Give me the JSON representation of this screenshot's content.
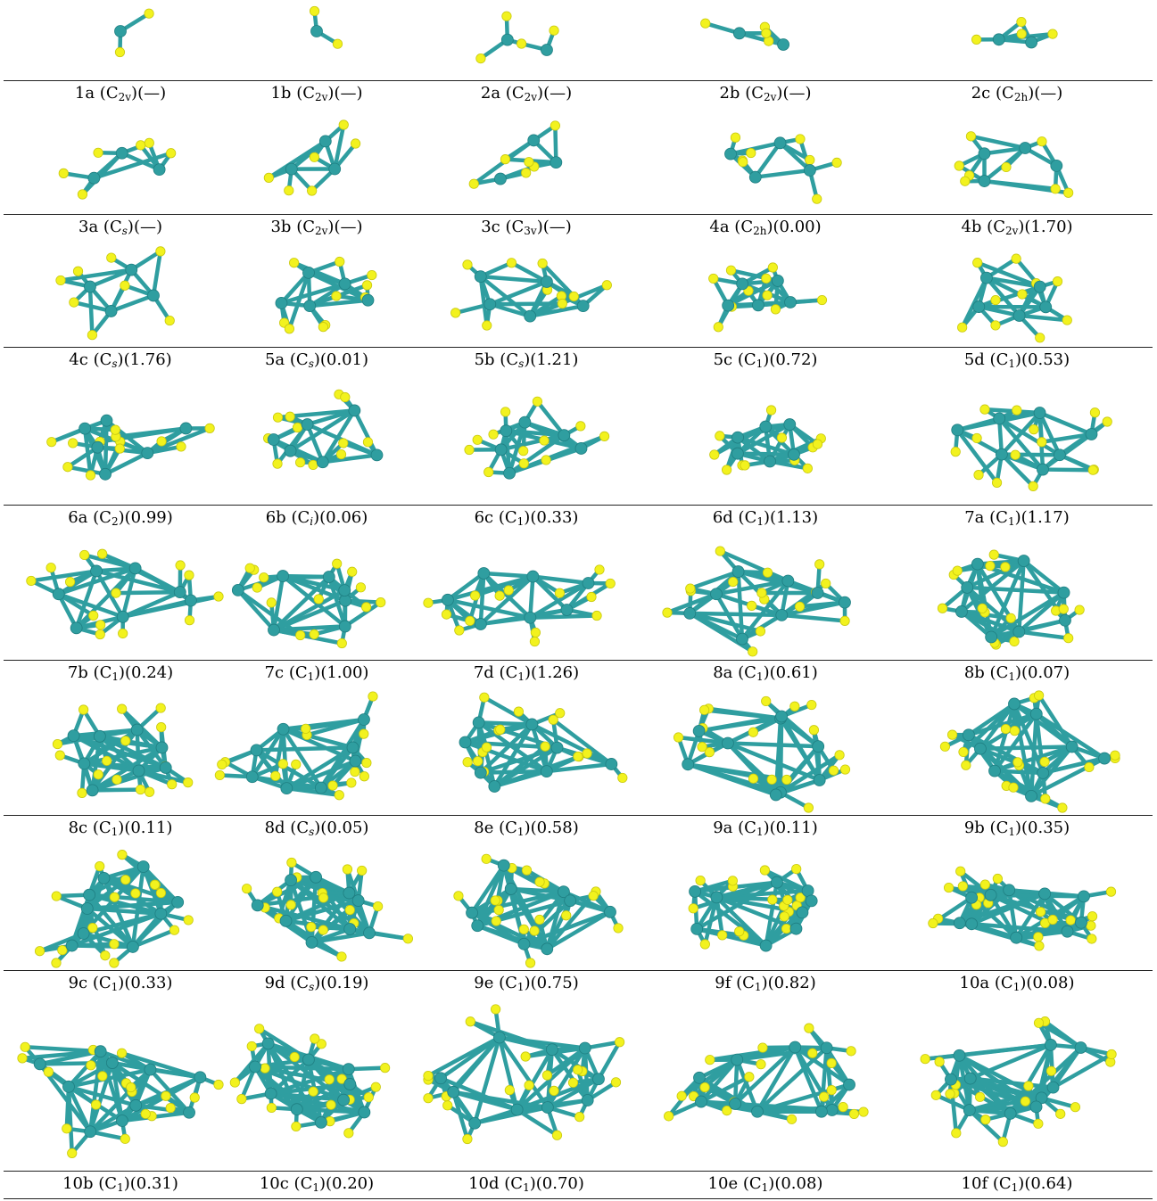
{
  "colors": {
    "metal": "#2f9ea0",
    "sulfur": "#f2f21e",
    "rule": "#222222"
  },
  "rows": [
    {
      "cells": [
        {
          "id": "1a",
          "group": "C",
          "sub": "2v",
          "energy": "(—)",
          "atoms": {
            "m": 1,
            "s": 2
          }
        },
        {
          "id": "1b",
          "group": "C",
          "sub": "2v",
          "energy": "(—)",
          "atoms": {
            "m": 1,
            "s": 2
          }
        },
        {
          "id": "2a",
          "group": "C",
          "sub": "2v",
          "energy": "(—)",
          "atoms": {
            "m": 2,
            "s": 4
          }
        },
        {
          "id": "2b",
          "group": "C",
          "sub": "2v",
          "energy": "(—)",
          "atoms": {
            "m": 2,
            "s": 4
          }
        },
        {
          "id": "2c",
          "group": "C",
          "sub": "2h",
          "energy": "(—)",
          "atoms": {
            "m": 2,
            "s": 4
          }
        }
      ]
    },
    {
      "cells": [
        {
          "id": "3a",
          "group": "C",
          "sub": "s",
          "energy": "(—)",
          "atoms": {
            "m": 3,
            "s": 6
          }
        },
        {
          "id": "3b",
          "group": "C",
          "sub": "2v",
          "energy": "(—)",
          "atoms": {
            "m": 3,
            "s": 6
          }
        },
        {
          "id": "3c",
          "group": "C",
          "sub": "3v",
          "energy": "(—)",
          "atoms": {
            "m": 3,
            "s": 6
          }
        },
        {
          "id": "4a",
          "group": "C",
          "sub": "2h",
          "energy": "(0.00)",
          "atoms": {
            "m": 4,
            "s": 8
          }
        },
        {
          "id": "4b",
          "group": "C",
          "sub": "2v",
          "energy": "(1.70)",
          "atoms": {
            "m": 4,
            "s": 8
          }
        }
      ]
    },
    {
      "cells": [
        {
          "id": "4c",
          "group": "C",
          "sub": "s",
          "energy": "(1.76)",
          "atoms": {
            "m": 4,
            "s": 8
          }
        },
        {
          "id": "5a",
          "group": "C",
          "sub": "s",
          "energy": "(0.01)",
          "atoms": {
            "m": 5,
            "s": 10
          }
        },
        {
          "id": "5b",
          "group": "C",
          "sub": "s",
          "energy": "(1.21)",
          "atoms": {
            "m": 5,
            "s": 10
          }
        },
        {
          "id": "5c",
          "group": "C",
          "sub": "1",
          "energy": "(0.72)",
          "atoms": {
            "m": 5,
            "s": 10
          }
        },
        {
          "id": "5d",
          "group": "C",
          "sub": "1",
          "energy": "(0.53)",
          "atoms": {
            "m": 5,
            "s": 10
          }
        }
      ]
    },
    {
      "cells": [
        {
          "id": "6a",
          "group": "C",
          "sub": "2",
          "energy": "(0.99)",
          "atoms": {
            "m": 6,
            "s": 12
          }
        },
        {
          "id": "6b",
          "group": "C",
          "sub": "i",
          "energy": "(0.06)",
          "atoms": {
            "m": 6,
            "s": 12
          }
        },
        {
          "id": "6c",
          "group": "C",
          "sub": "1",
          "energy": "(0.33)",
          "atoms": {
            "m": 6,
            "s": 12
          }
        },
        {
          "id": "6d",
          "group": "C",
          "sub": "1",
          "energy": "(1.13)",
          "atoms": {
            "m": 6,
            "s": 12
          }
        },
        {
          "id": "7a",
          "group": "C",
          "sub": "1",
          "energy": "(1.17)",
          "atoms": {
            "m": 7,
            "s": 14
          }
        }
      ]
    },
    {
      "cells": [
        {
          "id": "7b",
          "group": "C",
          "sub": "1",
          "energy": "(0.24)",
          "atoms": {
            "m": 7,
            "s": 14
          }
        },
        {
          "id": "7c",
          "group": "C",
          "sub": "1",
          "energy": "(1.00)",
          "atoms": {
            "m": 7,
            "s": 14
          }
        },
        {
          "id": "7d",
          "group": "C",
          "sub": "1",
          "energy": "(1.26)",
          "atoms": {
            "m": 7,
            "s": 14
          }
        },
        {
          "id": "8a",
          "group": "C",
          "sub": "1",
          "energy": "(0.61)",
          "atoms": {
            "m": 8,
            "s": 16
          }
        },
        {
          "id": "8b",
          "group": "C",
          "sub": "1",
          "energy": "(0.07)",
          "atoms": {
            "m": 8,
            "s": 16
          }
        }
      ]
    },
    {
      "cells": [
        {
          "id": "8c",
          "group": "C",
          "sub": "1",
          "energy": "(0.11)",
          "atoms": {
            "m": 8,
            "s": 16
          }
        },
        {
          "id": "8d",
          "group": "C",
          "sub": "s",
          "energy": "(0.05)",
          "atoms": {
            "m": 8,
            "s": 16
          }
        },
        {
          "id": "8e",
          "group": "C",
          "sub": "1",
          "energy": "(0.58)",
          "atoms": {
            "m": 8,
            "s": 16
          }
        },
        {
          "id": "9a",
          "group": "C",
          "sub": "1",
          "energy": "(0.11)",
          "atoms": {
            "m": 9,
            "s": 18
          }
        },
        {
          "id": "9b",
          "group": "C",
          "sub": "1",
          "energy": "(0.35)",
          "atoms": {
            "m": 9,
            "s": 18
          }
        }
      ]
    },
    {
      "cells": [
        {
          "id": "9c",
          "group": "C",
          "sub": "1",
          "energy": "(0.33)",
          "atoms": {
            "m": 9,
            "s": 18
          }
        },
        {
          "id": "9d",
          "group": "C",
          "sub": "s",
          "energy": "(0.19)",
          "atoms": {
            "m": 9,
            "s": 18
          }
        },
        {
          "id": "9e",
          "group": "C",
          "sub": "1",
          "energy": "(0.75)",
          "atoms": {
            "m": 9,
            "s": 18
          }
        },
        {
          "id": "9f",
          "group": "C",
          "sub": "1",
          "energy": "(0.82)",
          "atoms": {
            "m": 9,
            "s": 18
          }
        },
        {
          "id": "10a",
          "group": "C",
          "sub": "1",
          "energy": "(0.08)",
          "atoms": {
            "m": 10,
            "s": 20
          }
        }
      ]
    },
    {
      "cells": [
        {
          "id": "10b",
          "group": "C",
          "sub": "1",
          "energy": "(0.31)",
          "atoms": {
            "m": 10,
            "s": 20
          }
        },
        {
          "id": "10c",
          "group": "C",
          "sub": "1",
          "energy": "(0.20)",
          "atoms": {
            "m": 10,
            "s": 20
          }
        },
        {
          "id": "10d",
          "group": "C",
          "sub": "1",
          "energy": "(0.70)",
          "atoms": {
            "m": 10,
            "s": 20
          }
        },
        {
          "id": "10e",
          "group": "C",
          "sub": "1",
          "energy": "(0.08)",
          "atoms": {
            "m": 10,
            "s": 20
          }
        },
        {
          "id": "10f",
          "group": "C",
          "sub": "1",
          "energy": "(0.64)",
          "atoms": {
            "m": 10,
            "s": 20
          }
        }
      ]
    }
  ]
}
